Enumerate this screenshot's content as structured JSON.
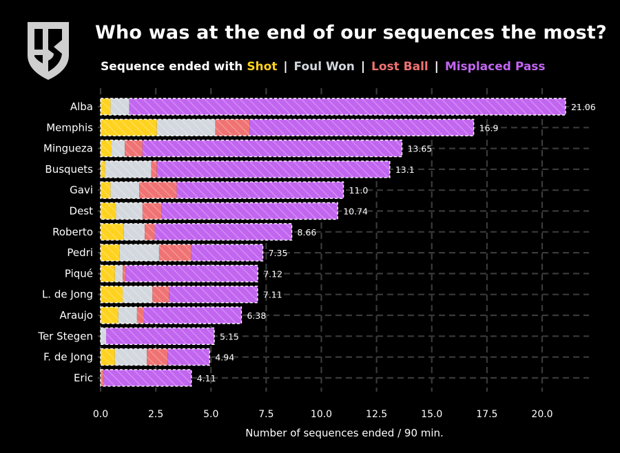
{
  "title": "Who was at the end of our sequences the most?",
  "subtitle": {
    "prefix": "Sequence ended with",
    "shot": "Shot",
    "sep": "|",
    "foul": "Foul Won",
    "lost": "Lost Ball",
    "misplaced": "Misplaced Pass"
  },
  "colors": {
    "background": "#000000",
    "shot": "#ffd21f",
    "foul_won": "#d3d8de",
    "lost_ball": "#f07373",
    "misplaced_pass": "#c266f0",
    "grid": "#3a3a3a"
  },
  "logo": "club-shield-logo",
  "chart_data": {
    "type": "bar",
    "orientation": "horizontal",
    "stacked": true,
    "xlabel": "Number of sequences ended / 90 min.",
    "ylabel": "",
    "xlim": [
      0,
      22
    ],
    "xticks": [
      "0.0",
      "2.5",
      "5.0",
      "7.5",
      "10.0",
      "12.5",
      "15.0",
      "17.5",
      "20.0"
    ],
    "grid": true,
    "categories": [
      "Alba",
      "Memphis",
      "Mingueza",
      "Busquets",
      "Gavi",
      "Dest",
      "Roberto",
      "Pedri",
      "Piqué",
      "L. de Jong",
      "Araujo",
      "Ter Stegen",
      "F. de Jong",
      "Eric"
    ],
    "totals": [
      "21.06",
      "16.9",
      "13.65",
      "13.1",
      "11.0",
      "10.74",
      "8.66",
      "7.35",
      "7.12",
      "7.11",
      "6.38",
      "5.15",
      "4.94",
      "4.11"
    ],
    "series": [
      {
        "name": "Shot",
        "values": [
          0.45,
          2.55,
          0.5,
          0.2,
          0.45,
          0.7,
          1.05,
          0.85,
          0.65,
          1.0,
          0.8,
          0.0,
          0.65,
          0.0
        ]
      },
      {
        "name": "Foul Won",
        "values": [
          0.85,
          2.65,
          0.6,
          2.1,
          1.3,
          1.2,
          0.95,
          1.8,
          0.35,
          1.35,
          0.85,
          0.25,
          1.45,
          0.0
        ]
      },
      {
        "name": "Lost Ball",
        "values": [
          0.0,
          1.55,
          0.8,
          0.25,
          1.7,
          0.85,
          0.45,
          1.45,
          0.15,
          0.75,
          0.3,
          0.0,
          0.95,
          0.15
        ]
      },
      {
        "name": "Misplaced Pass",
        "values": [
          19.76,
          10.15,
          11.75,
          10.55,
          7.55,
          7.99,
          6.21,
          3.25,
          5.97,
          4.01,
          4.43,
          4.9,
          1.89,
          3.96
        ]
      }
    ]
  }
}
